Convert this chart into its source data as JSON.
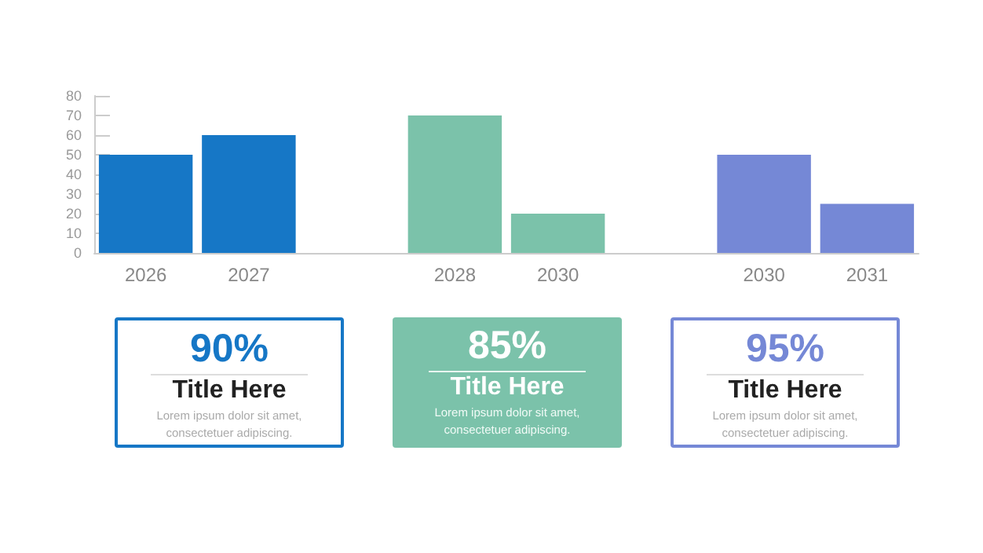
{
  "chart_data": [
    {
      "type": "bar",
      "categories": [
        "2026",
        "2027",
        null,
        "2028",
        "2030",
        null,
        "2030",
        "2031"
      ],
      "values": [
        50,
        60,
        null,
        70,
        20,
        null,
        50,
        25
      ],
      "colors": [
        "#1677c6",
        "#1677c6",
        null,
        "#7bc2aa",
        "#7bc2aa",
        null,
        "#7588d6",
        "#7588d6"
      ],
      "ylim": [
        0,
        80
      ],
      "yticks": [
        0,
        10,
        20,
        30,
        40,
        50,
        60,
        70,
        80
      ],
      "grid": false
    },
    {
      "type": "other",
      "title": "90%",
      "subtitle": "Title Here",
      "annotations": [
        "Lorem ipsum dolor sit amet,",
        "consectetuer adipiscing."
      ],
      "color": "#1677c6"
    },
    {
      "type": "other",
      "title": "85%",
      "subtitle": "Title Here",
      "annotations": [
        "Lorem ipsum dolor sit amet,",
        "consectetuer adipiscing."
      ],
      "color": "#7bc2aa"
    },
    {
      "type": "other",
      "title": "95%",
      "subtitle": "Title Here",
      "annotations": [
        "Lorem ipsum dolor sit amet,",
        "consectetuer adipiscing."
      ],
      "color": "#7588d6"
    }
  ]
}
